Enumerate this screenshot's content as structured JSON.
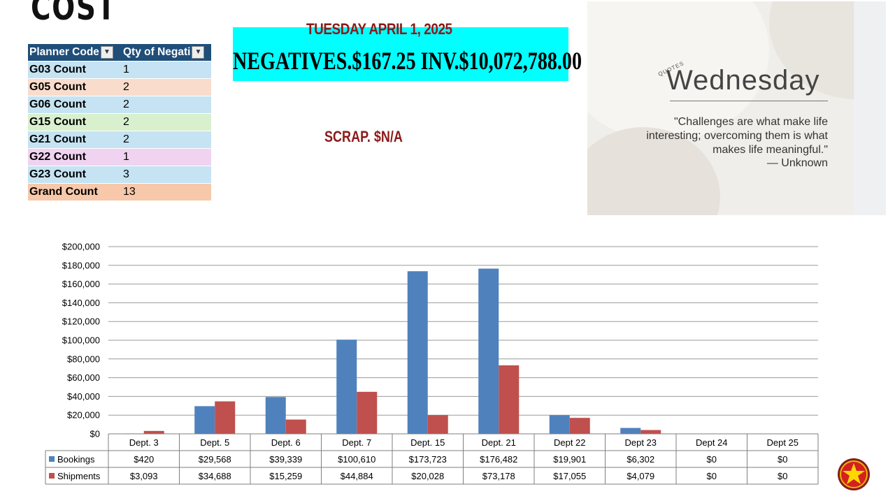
{
  "page": {
    "title": "COST",
    "date": "TUESDAY APRIL 1, 2025",
    "banner": "NEGATIVES.$167.25  INV.$10,072,788.00",
    "scrap": "SCRAP. $N/A"
  },
  "pivot": {
    "headers": [
      "Planner Code",
      "Qty of Negati"
    ],
    "rows": [
      {
        "code": "G03 Count",
        "qty": "1",
        "color": "#c5e3f2"
      },
      {
        "code": "G05 Count",
        "qty": "2",
        "color": "#f9dccb"
      },
      {
        "code": "G06 Count",
        "qty": "2",
        "color": "#c5e3f2"
      },
      {
        "code": "G15 Count",
        "qty": "2",
        "color": "#d9f0cf"
      },
      {
        "code": "G21 Count",
        "qty": "2",
        "color": "#c5e3f2"
      },
      {
        "code": "G22 Count",
        "qty": "1",
        "color": "#f0d3f0"
      },
      {
        "code": "G23 Count",
        "qty": "3",
        "color": "#c5e3f2"
      },
      {
        "code": "Grand Count",
        "qty": "13",
        "color": "#f7c8aa"
      }
    ]
  },
  "quote": {
    "label": "QUOTES",
    "title": "Wednesday",
    "body": "\"Challenges are what make life interesting; overcoming them is what makes life meaningful.\"",
    "author": "— Unknown"
  },
  "chart_data": {
    "type": "bar",
    "categories": [
      "Dept. 3",
      "Dept. 5",
      "Dept. 6",
      "Dept. 7",
      "Dept. 15",
      "Dept. 21",
      "Dept 22",
      "Dept 23",
      "Dept 24",
      "Dept 25"
    ],
    "series": [
      {
        "name": "Bookings",
        "color": "#4f81bd",
        "values": [
          420,
          29568,
          39339,
          100610,
          173723,
          176482,
          19901,
          6302,
          0,
          0
        ],
        "labels": [
          "$420",
          "$29,568",
          "$39,339",
          "$100,610",
          "$173,723",
          "$176,482",
          "$19,901",
          "$6,302",
          "$0",
          "$0"
        ]
      },
      {
        "name": "Shipments",
        "color": "#c0504d",
        "values": [
          3093,
          34688,
          15259,
          44884,
          20028,
          73178,
          17055,
          4079,
          0,
          0
        ],
        "labels": [
          "$3,093",
          "$34,688",
          "$15,259",
          "$44,884",
          "$20,028",
          "$73,178",
          "$17,055",
          "$4,079",
          "$0",
          "$0"
        ]
      }
    ],
    "ylim": [
      0,
      200000
    ],
    "yticks": [
      "$0",
      "$20,000",
      "$40,000",
      "$60,000",
      "$80,000",
      "$100,000",
      "$120,000",
      "$140,000",
      "$160,000",
      "$180,000",
      "$200,000"
    ],
    "grid": true,
    "legend": "data-table"
  }
}
